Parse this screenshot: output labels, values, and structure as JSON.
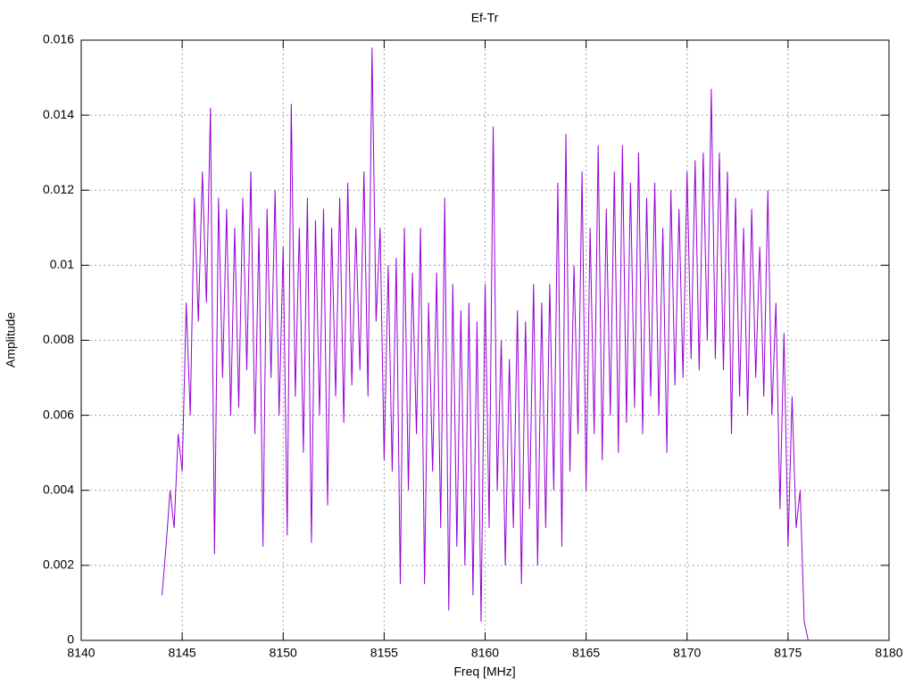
{
  "chart_data": {
    "type": "line",
    "title": "Ef-Tr",
    "x_label": "Freq [MHz]",
    "y_label": "Amplitude",
    "color": "#9400d3",
    "grid": true,
    "xlim": [
      8140,
      8180
    ],
    "xticks": [
      8140,
      8145,
      8150,
      8155,
      8160,
      8165,
      8170,
      8175,
      8180
    ],
    "ylim": [
      0,
      0.016
    ],
    "yticks": [
      0,
      0.002,
      0.004,
      0.006,
      0.008,
      0.01,
      0.012,
      0.014,
      0.016
    ],
    "x": [
      8144.0,
      8144.2,
      8144.4,
      8144.6,
      8144.8,
      8145.0,
      8145.2,
      8145.4,
      8145.6,
      8145.8,
      8146.0,
      8146.2,
      8146.4,
      8146.6,
      8146.8,
      8147.0,
      8147.2,
      8147.4,
      8147.6,
      8147.8,
      8148.0,
      8148.2,
      8148.4,
      8148.6,
      8148.8,
      8149.0,
      8149.2,
      8149.4,
      8149.6,
      8149.8,
      8150.0,
      8150.2,
      8150.4,
      8150.6,
      8150.8,
      8151.0,
      8151.2,
      8151.4,
      8151.6,
      8151.8,
      8152.0,
      8152.2,
      8152.4,
      8152.6,
      8152.8,
      8153.0,
      8153.2,
      8153.4,
      8153.6,
      8153.8,
      8154.0,
      8154.2,
      8154.4,
      8154.6,
      8154.8,
      8155.0,
      8155.2,
      8155.4,
      8155.6,
      8155.8,
      8156.0,
      8156.2,
      8156.4,
      8156.6,
      8156.8,
      8157.0,
      8157.2,
      8157.4,
      8157.6,
      8157.8,
      8158.0,
      8158.2,
      8158.4,
      8158.6,
      8158.8,
      8159.0,
      8159.2,
      8159.4,
      8159.6,
      8159.8,
      8160.0,
      8160.2,
      8160.4,
      8160.6,
      8160.8,
      8161.0,
      8161.2,
      8161.4,
      8161.6,
      8161.8,
      8162.0,
      8162.2,
      8162.4,
      8162.6,
      8162.8,
      8163.0,
      8163.2,
      8163.4,
      8163.6,
      8163.8,
      8164.0,
      8164.2,
      8164.4,
      8164.6,
      8164.8,
      8165.0,
      8165.2,
      8165.4,
      8165.6,
      8165.8,
      8166.0,
      8166.2,
      8166.4,
      8166.6,
      8166.8,
      8167.0,
      8167.2,
      8167.4,
      8167.6,
      8167.8,
      8168.0,
      8168.2,
      8168.4,
      8168.6,
      8168.8,
      8169.0,
      8169.2,
      8169.4,
      8169.6,
      8169.8,
      8170.0,
      8170.2,
      8170.4,
      8170.6,
      8170.8,
      8171.0,
      8171.2,
      8171.4,
      8171.6,
      8171.8,
      8172.0,
      8172.2,
      8172.4,
      8172.6,
      8172.8,
      8173.0,
      8173.2,
      8173.4,
      8173.6,
      8173.8,
      8174.0,
      8174.2,
      8174.4,
      8174.6,
      8174.8,
      8175.0,
      8175.2,
      8175.4,
      8175.6,
      8175.8,
      8176.0
    ],
    "values": [
      0.0012,
      0.0025,
      0.004,
      0.003,
      0.0055,
      0.0045,
      0.009,
      0.006,
      0.0118,
      0.0085,
      0.0125,
      0.009,
      0.0142,
      0.0023,
      0.0118,
      0.007,
      0.0115,
      0.006,
      0.011,
      0.0062,
      0.0118,
      0.0072,
      0.0125,
      0.0055,
      0.011,
      0.0025,
      0.0115,
      0.007,
      0.012,
      0.006,
      0.0105,
      0.0028,
      0.0143,
      0.0065,
      0.011,
      0.005,
      0.0118,
      0.0026,
      0.0112,
      0.006,
      0.0115,
      0.0036,
      0.011,
      0.0065,
      0.0118,
      0.0058,
      0.0122,
      0.0068,
      0.011,
      0.0072,
      0.0125,
      0.0065,
      0.0158,
      0.0085,
      0.011,
      0.0048,
      0.01,
      0.0045,
      0.0102,
      0.0015,
      0.011,
      0.004,
      0.0098,
      0.0055,
      0.011,
      0.0015,
      0.009,
      0.0045,
      0.0098,
      0.003,
      0.0118,
      0.0008,
      0.0095,
      0.0025,
      0.0088,
      0.002,
      0.009,
      0.0012,
      0.0085,
      0.0005,
      0.0095,
      0.003,
      0.0137,
      0.004,
      0.008,
      0.002,
      0.0075,
      0.003,
      0.0088,
      0.0015,
      0.0085,
      0.0035,
      0.0095,
      0.002,
      0.009,
      0.003,
      0.0095,
      0.004,
      0.0122,
      0.0025,
      0.0135,
      0.0045,
      0.01,
      0.0055,
      0.0125,
      0.004,
      0.011,
      0.0055,
      0.0132,
      0.0048,
      0.0115,
      0.006,
      0.0125,
      0.005,
      0.0132,
      0.0058,
      0.0122,
      0.0062,
      0.013,
      0.0055,
      0.0118,
      0.0065,
      0.0122,
      0.006,
      0.011,
      0.005,
      0.012,
      0.0068,
      0.0115,
      0.007,
      0.0125,
      0.0075,
      0.0128,
      0.0072,
      0.013,
      0.008,
      0.0147,
      0.0075,
      0.013,
      0.0072,
      0.0125,
      0.0055,
      0.0118,
      0.0065,
      0.011,
      0.006,
      0.0115,
      0.007,
      0.0105,
      0.0065,
      0.012,
      0.006,
      0.009,
      0.0035,
      0.0082,
      0.0025,
      0.0065,
      0.003,
      0.004,
      0.0005,
      0.0
    ]
  }
}
